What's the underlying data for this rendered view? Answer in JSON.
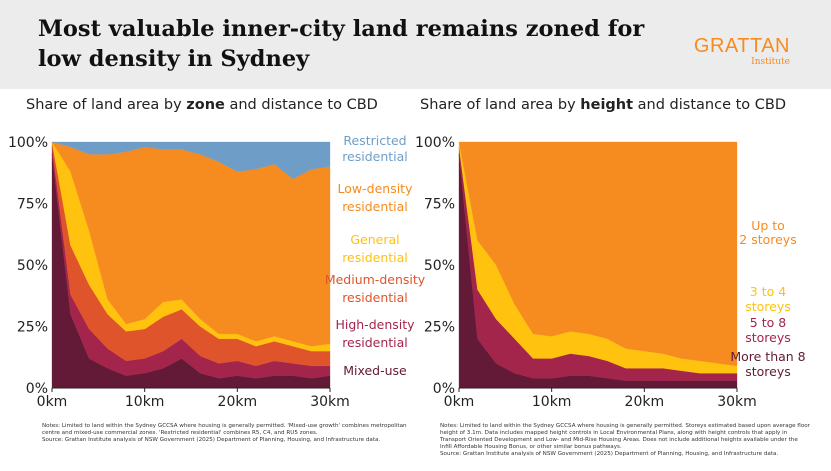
{
  "header": {
    "title": "Most valuable inner-city land remains zoned for low density in Sydney",
    "logo_main": "GRATTAN",
    "logo_sub": "Institute"
  },
  "left_chart": {
    "subtitle_pre": "Share of land area by ",
    "subtitle_bold": "zone",
    "subtitle_post": " and distance to CBD",
    "notes_line1": "Notes: Limited to land within the Sydney GCCSA where housing is generally permitted. 'Mixed-use growth' combines metropolitan centre and mixed-use commercial zones.  'Restricted residential' combines R5, C4, and RU5 zones.",
    "notes_line2": "Source: Grattan Institute analysis of NSW Government (2025) Department of Planning, Housing, and Infrastructure data."
  },
  "right_chart": {
    "subtitle_pre": "Share of land area by ",
    "subtitle_bold": "height",
    "subtitle_post": " and distance to CBD",
    "notes_line1": "Notes: Limited to land within the Sydney GCCSA where housing is generally permitted. Storeys estimated based upon average floor height of 3.1m. Data includes mapped height controls in Local Environmental Plans, along with height controls that apply in Transport Oriented Development and Low- and Mid-Rise Housing Areas. Does not include additional heights available under the Infill Affordable Housing Bonus, or other similar bonus pathways.",
    "notes_line2": "Source: Grattan Institute analysis of NSW Government (2025) Department of Planning, Housing, and Infrastructure data."
  },
  "chart_data": [
    {
      "type": "area",
      "stacked": true,
      "title": "Share of land area by zone and distance to CBD",
      "x": [
        0,
        2,
        4,
        6,
        8,
        10,
        12,
        14,
        16,
        18,
        20,
        22,
        24,
        26,
        28,
        30
      ],
      "x_ticks": [
        "0km",
        "10km",
        "20km",
        "30km"
      ],
      "x_tick_values": [
        0,
        10,
        20,
        30
      ],
      "y_ticks": [
        "0%",
        "25%",
        "50%",
        "75%",
        "100%"
      ],
      "y_tick_values": [
        0,
        25,
        50,
        75,
        100
      ],
      "xlim": [
        0,
        30
      ],
      "ylim": [
        0,
        100
      ],
      "series": [
        {
          "name": "Mixed-use",
          "color": "#621a36",
          "values": [
            95,
            30,
            12,
            8,
            5,
            6,
            8,
            12,
            6,
            4,
            5,
            4,
            5,
            5,
            4,
            5
          ]
        },
        {
          "name": "High-density residential",
          "color": "#a3254b",
          "values": [
            3,
            8,
            12,
            8,
            6,
            6,
            7,
            8,
            7,
            6,
            6,
            5,
            6,
            5,
            5,
            4
          ]
        },
        {
          "name": "Medium-density residential",
          "color": "#e0542b",
          "values": [
            2,
            20,
            18,
            14,
            12,
            12,
            14,
            12,
            12,
            10,
            9,
            8,
            8,
            7,
            6,
            6
          ]
        },
        {
          "name": "General residential",
          "color": "#ffc20e",
          "values": [
            0,
            30,
            22,
            6,
            3,
            4,
            6,
            4,
            3,
            2,
            2,
            2,
            2,
            2,
            2,
            3
          ]
        },
        {
          "name": "Low-density residential",
          "color": "#f68b1f",
          "values": [
            0,
            10,
            31,
            59,
            70,
            70,
            62,
            61,
            67,
            70,
            66,
            70,
            70,
            66,
            72,
            72
          ]
        },
        {
          "name": "Restricted residential",
          "color": "#6e9ec8",
          "values": [
            0,
            2,
            5,
            5,
            4,
            2,
            3,
            3,
            5,
            8,
            12,
            11,
            9,
            15,
            11,
            10
          ]
        }
      ],
      "legend_labels": [
        {
          "series": "Restricted residential",
          "lines": [
            "Restricted",
            "residential"
          ]
        },
        {
          "series": "Low-density residential",
          "lines": [
            "Low-density",
            "residential"
          ]
        },
        {
          "series": "General residential",
          "lines": [
            "General",
            "residential"
          ]
        },
        {
          "series": "Medium-density residential",
          "lines": [
            "Medium-density",
            "residential"
          ]
        },
        {
          "series": "High-density residential",
          "lines": [
            "High-density",
            "residential"
          ]
        },
        {
          "series": "Mixed-use",
          "lines": [
            "Mixed-use"
          ]
        }
      ]
    },
    {
      "type": "area",
      "stacked": true,
      "title": "Share of land area by height and distance to CBD",
      "x": [
        0,
        2,
        4,
        6,
        8,
        10,
        12,
        14,
        16,
        18,
        20,
        22,
        24,
        26,
        28,
        30
      ],
      "x_ticks": [
        "0km",
        "10km",
        "20km",
        "30km"
      ],
      "x_tick_values": [
        0,
        10,
        20,
        30
      ],
      "y_ticks": [
        "0%",
        "25%",
        "50%",
        "75%",
        "100%"
      ],
      "y_tick_values": [
        0,
        25,
        50,
        75,
        100
      ],
      "xlim": [
        0,
        30
      ],
      "ylim": [
        0,
        100
      ],
      "series": [
        {
          "name": "More than 8 storeys",
          "color": "#621a36",
          "values": [
            95,
            20,
            10,
            6,
            4,
            4,
            5,
            5,
            4,
            3,
            3,
            3,
            3,
            3,
            3,
            3
          ]
        },
        {
          "name": "5 to 8 storeys",
          "color": "#a3254b",
          "values": [
            3,
            20,
            18,
            14,
            8,
            8,
            9,
            8,
            7,
            5,
            5,
            5,
            4,
            3,
            3,
            3
          ]
        },
        {
          "name": "3 to 4 storeys",
          "color": "#ffc20e",
          "values": [
            2,
            20,
            22,
            14,
            10,
            9,
            9,
            9,
            9,
            8,
            7,
            6,
            5,
            5,
            4,
            3
          ]
        },
        {
          "name": "Up to 2 storeys",
          "color": "#f68b1f",
          "values": [
            0,
            40,
            50,
            66,
            78,
            79,
            77,
            78,
            80,
            84,
            85,
            86,
            88,
            89,
            90,
            91
          ]
        }
      ],
      "legend_labels": [
        {
          "series": "Up to 2 storeys",
          "lines": [
            "Up to",
            "2 storeys"
          ]
        },
        {
          "series": "3 to 4 storeys",
          "lines": [
            "3 to 4",
            "storeys"
          ]
        },
        {
          "series": "5 to 8 storeys",
          "lines": [
            "5 to 8",
            "storeys"
          ]
        },
        {
          "series": "More than 8 storeys",
          "lines": [
            "More than 8",
            "storeys"
          ]
        }
      ]
    }
  ]
}
